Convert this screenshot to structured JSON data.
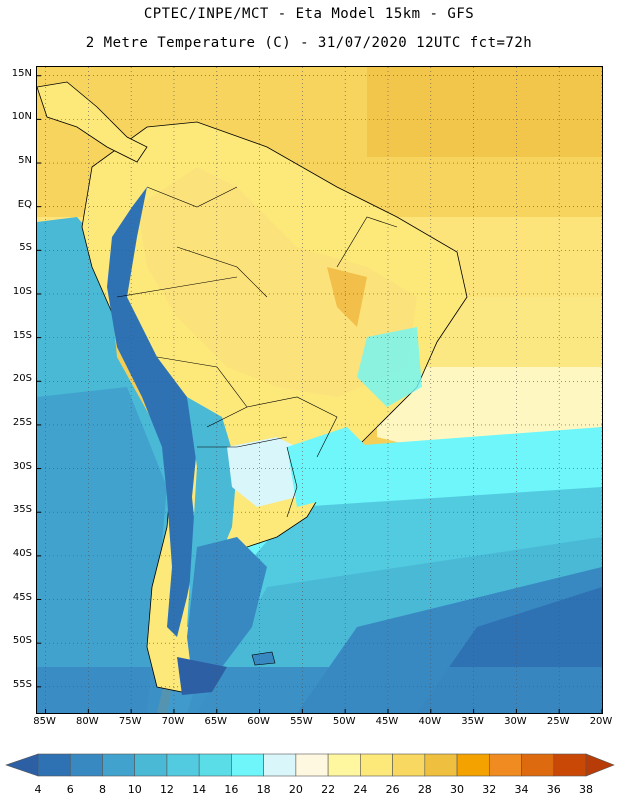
{
  "header": {
    "title_line1": "CPTEC/INPE/MCT -  Eta Model 15km - GFS",
    "title_line2": "2 Metre Temperature (C) - 31/07/2020 12UTC fct=72h"
  },
  "map": {
    "lat_labels": [
      "15N",
      "10N",
      "5N",
      "EQ",
      "5S",
      "10S",
      "15S",
      "20S",
      "25S",
      "30S",
      "35S",
      "40S",
      "45S",
      "50S",
      "55S"
    ],
    "lon_labels": [
      "85W",
      "80W",
      "75W",
      "70W",
      "65W",
      "60W",
      "55W",
      "50W",
      "45W",
      "40W",
      "35W",
      "30W",
      "25W",
      "20W"
    ],
    "lat_range": [
      16,
      -58
    ],
    "lon_range": [
      -86,
      -20
    ],
    "grid": true
  },
  "legend": {
    "unit": "C",
    "levels": [
      "4",
      "6",
      "8",
      "10",
      "12",
      "14",
      "16",
      "18",
      "20",
      "22",
      "24",
      "26",
      "28",
      "30",
      "32",
      "34",
      "36",
      "38"
    ],
    "colors": [
      "#2c5fa4",
      "#2e72b4",
      "#3889c2",
      "#41a3cd",
      "#4ab9d6",
      "#52cbe0",
      "#5bdde8",
      "#6ef6fa",
      "#d9f6fa",
      "#fff8e0",
      "#fff7a0",
      "#fde87a",
      "#f8d860",
      "#efc040",
      "#f4a200",
      "#ef8b21",
      "#de6a10",
      "#c94806",
      "#b83c08"
    ]
  }
}
